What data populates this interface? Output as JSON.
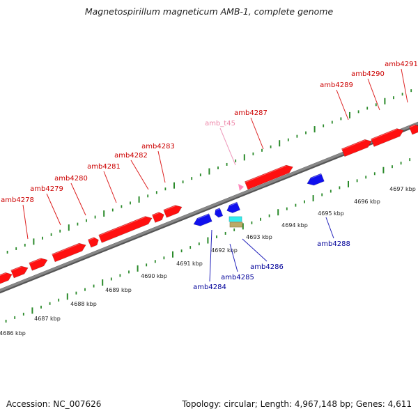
{
  "title": "Magnetospirillum magneticum AMB-1, complete genome",
  "footer": {
    "accession": "Accession: NC_007626",
    "summary": "Topology: circular; Length: 4,967,148 bp; Genes: 4,611"
  },
  "axis": {
    "unit": "kbp",
    "ticks": [
      "4686 kbp",
      "4687 kbp",
      "4688 kbp",
      "4689 kbp",
      "4690 kbp",
      "4691 kbp",
      "4692 kbp",
      "4693 kbp",
      "4694 kbp",
      "4695 kbp",
      "4696 kbp",
      "4697 kbp"
    ]
  },
  "colors": {
    "forward_gene": "#ff0000",
    "reverse_gene": "#0000ee",
    "forward_label": "#cc0000",
    "reverse_label": "#000099",
    "trna": "#ff88bb",
    "trna_label": "#ee88aa",
    "rna_cyan": "#33eeee",
    "rna_olive": "#bbaa66",
    "tick": "#2a8a2a",
    "backbone": "#888888"
  },
  "forward_labels": [
    "amb4278",
    "amb4279",
    "amb4280",
    "amb4281",
    "amb4282",
    "amb4283",
    "amb_t45",
    "amb4287",
    "amb4289",
    "amb4290",
    "amb4291"
  ],
  "reverse_labels": [
    "amb4284",
    "amb4285",
    "amb4286",
    "amb4288"
  ]
}
